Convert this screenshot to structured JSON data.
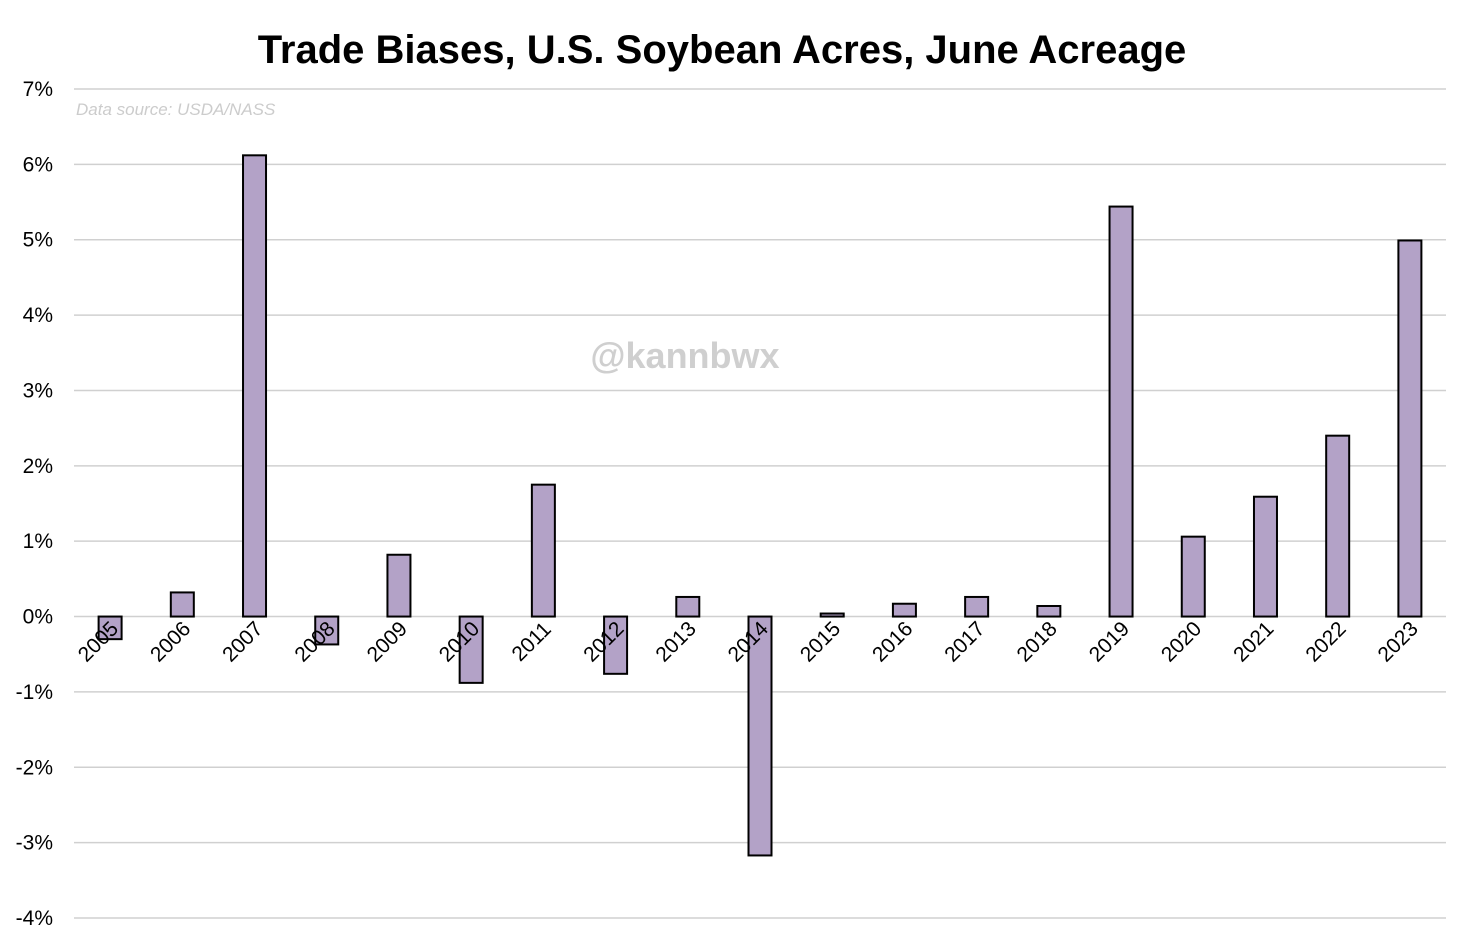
{
  "chart_data": {
    "type": "bar",
    "title": "Trade Biases, U.S. Soybean Acres, June Acreage",
    "source_note": "Data source: USDA/NASS",
    "watermark": "@kannbwx",
    "xlabel": "",
    "ylabel": "",
    "ylim": [
      -4,
      7
    ],
    "yticks": [
      7,
      6,
      5,
      4,
      3,
      2,
      1,
      0,
      -1,
      -2,
      -3,
      -4
    ],
    "ytick_labels": [
      "7%",
      "6%",
      "5%",
      "4%",
      "3%",
      "2%",
      "1%",
      "0%",
      "-1%",
      "-2%",
      "-3%",
      "-4%"
    ],
    "grid": true,
    "legend": "none",
    "categories": [
      "2005",
      "2006",
      "2007",
      "2008",
      "2009",
      "2010",
      "2011",
      "2012",
      "2013",
      "2014",
      "2015",
      "2016",
      "2017",
      "2018",
      "2019",
      "2020",
      "2021",
      "2022",
      "2023"
    ],
    "values": [
      -0.3,
      0.32,
      6.12,
      -0.37,
      0.82,
      -0.88,
      1.75,
      -0.76,
      0.26,
      -3.17,
      0.04,
      0.17,
      0.26,
      0.14,
      5.44,
      1.06,
      1.59,
      2.4,
      4.99
    ],
    "colors": {
      "bar_fill": "#b3a2c7",
      "bar_stroke": "#000000",
      "grid": "#d0d0d0",
      "watermark": "#cfcfcf",
      "source": "#cccccc"
    }
  }
}
